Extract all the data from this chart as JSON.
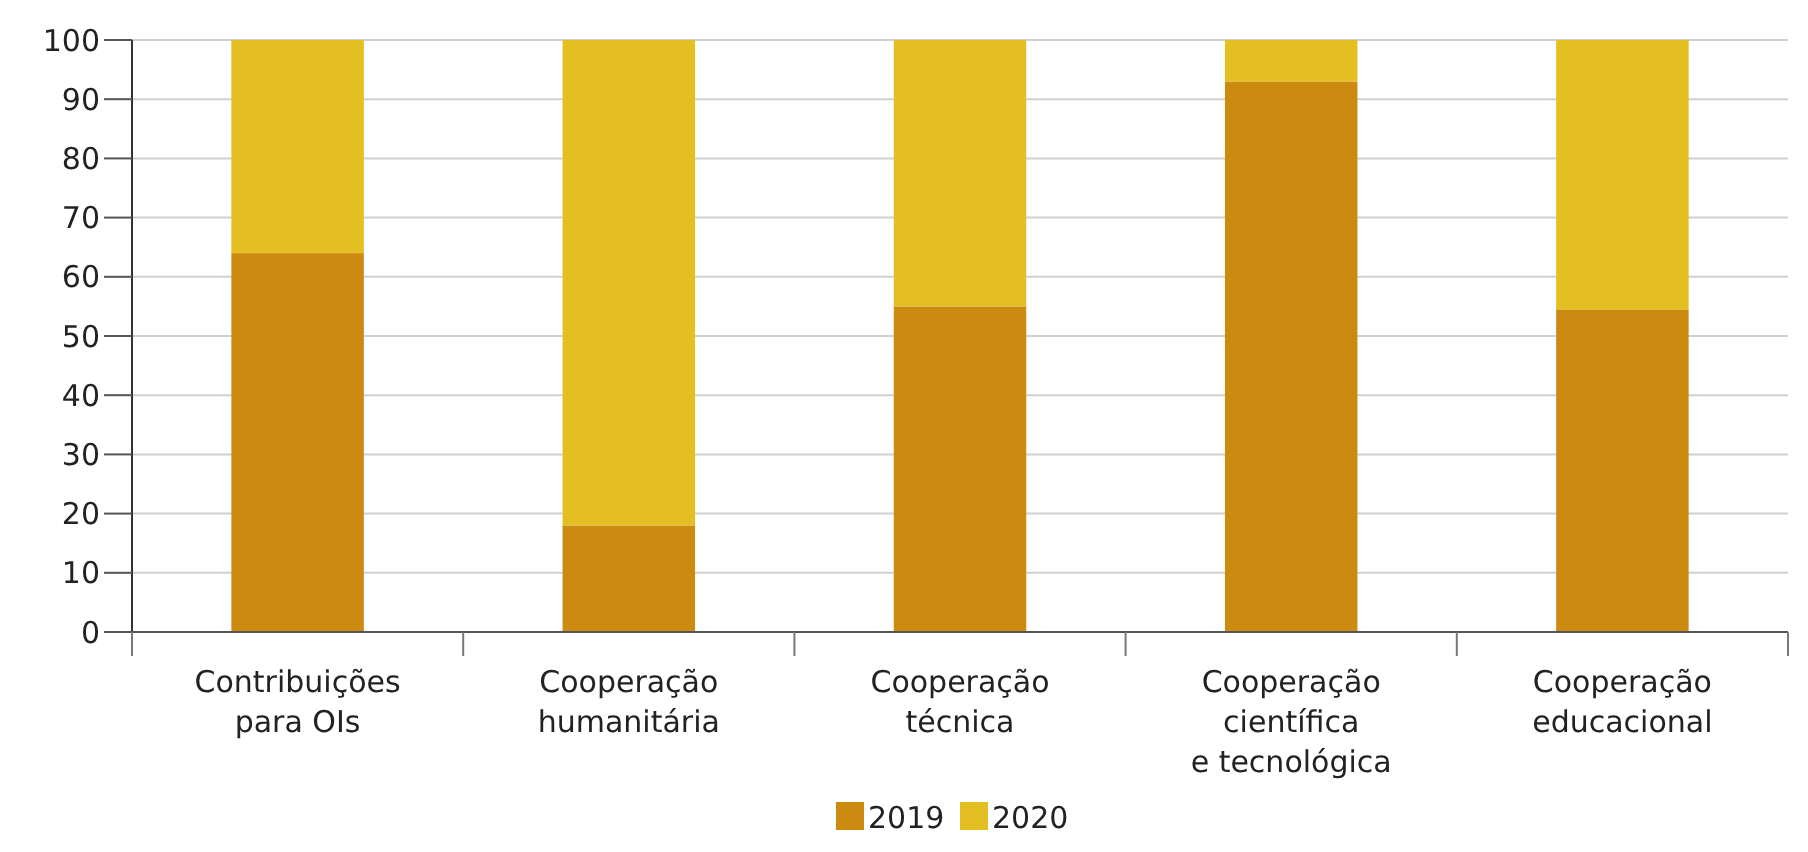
{
  "chart_data": {
    "type": "bar",
    "stacked": true,
    "categories": [
      "Contribuições\npara OIs",
      "Cooperação\nhumanitária",
      "Cooperação\ntécnica",
      "Cooperação\ncientífica\ne tecnológica",
      "Cooperação\neducacional"
    ],
    "series": [
      {
        "name": "2019",
        "color": "#cd8a10",
        "values": [
          64,
          18,
          55,
          93,
          54.5
        ]
      },
      {
        "name": "2020",
        "color": "#e3bf21",
        "values": [
          36,
          82,
          45,
          7,
          45.5
        ]
      }
    ],
    "ylim": [
      0,
      100
    ],
    "yticks": [
      0,
      10,
      20,
      30,
      40,
      50,
      60,
      70,
      80,
      90,
      100
    ],
    "grid": "y",
    "legend": "bottom"
  }
}
